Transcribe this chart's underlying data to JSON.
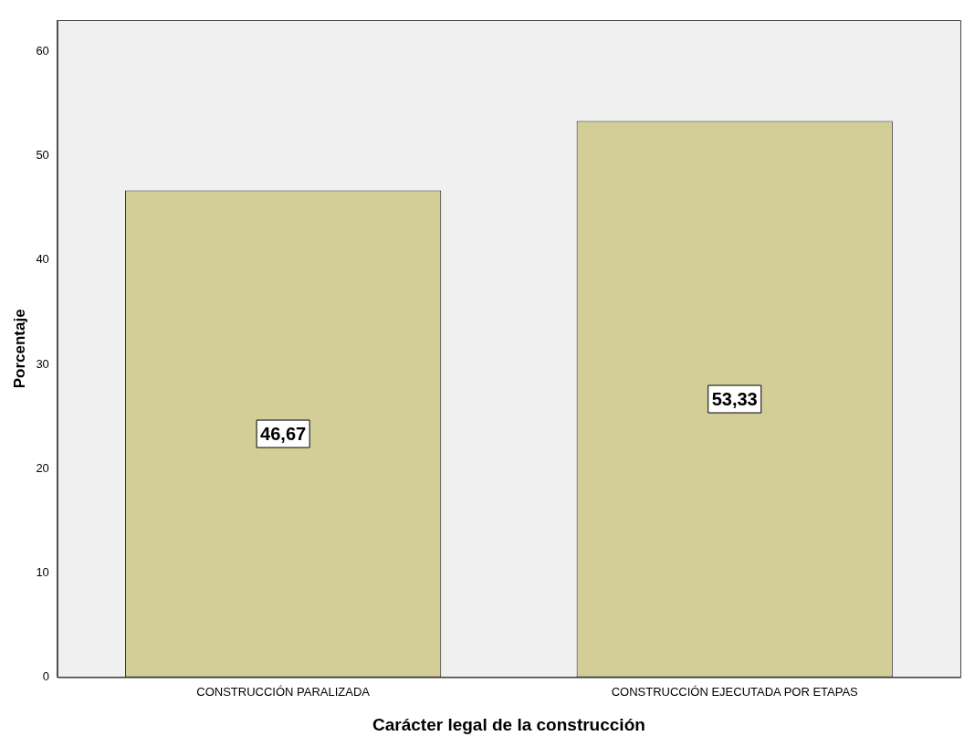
{
  "chart_data": {
    "type": "bar",
    "xlabel": "Carácter legal de la construcción",
    "ylabel": "Porcentaje",
    "categories": [
      "CONSTRUCCIÓN PARALIZADA",
      "CONSTRUCCIÓN EJECUTADA POR ETAPAS"
    ],
    "values": [
      46.67,
      53.33
    ],
    "color": "#d3ce97",
    "value_labels": [
      "46,67",
      "53,33"
    ],
    "ylim": [
      0,
      63
    ],
    "yticks": [
      0,
      10,
      20,
      30,
      40,
      50,
      60
    ]
  }
}
